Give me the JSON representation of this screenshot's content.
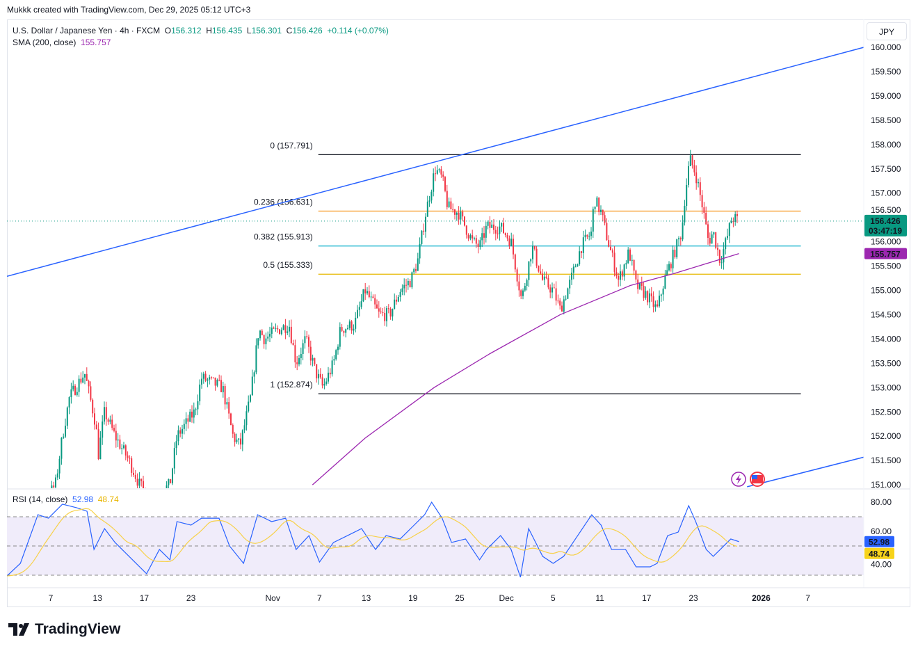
{
  "credit": "Mukkk created with TradingView.com, Dec 29, 2025 05:12 UTC+3",
  "legend": {
    "symbol": "U.S. Dollar / Japanese Yen · 4h · FXCM",
    "o_label": "O",
    "o": "156.312",
    "h_label": "H",
    "h": "156.435",
    "l_label": "L",
    "l": "156.301",
    "c_label": "C",
    "c": "156.426",
    "change": "+0.114 (+0.07%)",
    "sma_label": "SMA (200, close)",
    "sma_value": "155.757"
  },
  "currency_button": "JPY",
  "rsi_legend": {
    "label": "RSI (14, close)",
    "rsi": "52.98",
    "ma": "48.74"
  },
  "price_badges": {
    "last": "156.426",
    "countdown": "03:47:19",
    "sma": "155.757",
    "rsi": "52.98",
    "rsi_ma": "48.74"
  },
  "logo_text": "TradingView",
  "colors": {
    "up": "#089981",
    "down": "#f23645",
    "sma": "#9c27b0",
    "trend": "#2962ff",
    "rsi": "#2962ff",
    "rsi_ma": "#f7d14a"
  },
  "chart_data": {
    "type": "candlestick",
    "symbol": "USDJPY",
    "interval": "4h",
    "price_axis": {
      "min": 151.0,
      "max": 160.0,
      "ticks": [
        "151.000",
        "151.500",
        "152.000",
        "152.500",
        "153.000",
        "153.500",
        "154.000",
        "154.500",
        "155.000",
        "155.500",
        "156.000",
        "156.500",
        "157.000",
        "157.500",
        "158.000",
        "158.500",
        "159.000",
        "159.500",
        "160.000"
      ]
    },
    "time_axis": {
      "unit": "trading-day index from Oct 7",
      "ticks": [
        {
          "t": 0,
          "label": "7"
        },
        {
          "t": 4,
          "label": "13"
        },
        {
          "t": 8,
          "label": "17"
        },
        {
          "t": 12,
          "label": "23"
        },
        {
          "t": 19,
          "label": "Nov"
        },
        {
          "t": 23,
          "label": "7"
        },
        {
          "t": 27,
          "label": "13"
        },
        {
          "t": 31,
          "label": "19"
        },
        {
          "t": 35,
          "label": "25"
        },
        {
          "t": 39,
          "label": "Dec"
        },
        {
          "t": 43,
          "label": "5"
        },
        {
          "t": 47,
          "label": "11"
        },
        {
          "t": 51,
          "label": "17"
        },
        {
          "t": 55,
          "label": "23"
        },
        {
          "t": 60.8,
          "label": "2026"
        },
        {
          "t": 64.8,
          "label": "7"
        }
      ]
    },
    "price_path": [
      [
        -3.75,
        149.5
      ],
      [
        0.4,
        151.0
      ],
      [
        1.0,
        152.0
      ],
      [
        1.6,
        152.8
      ],
      [
        2.9,
        153.3
      ],
      [
        3.9,
        152.2
      ],
      [
        4.0,
        151.5
      ],
      [
        4.6,
        152.5
      ],
      [
        5.5,
        152.0
      ],
      [
        6.7,
        151.5
      ],
      [
        7.6,
        151.0
      ],
      [
        8.5,
        150.7
      ],
      [
        10.2,
        151.0
      ],
      [
        10.8,
        152.0
      ],
      [
        12.3,
        152.5
      ],
      [
        12.9,
        153.2
      ],
      [
        14.7,
        153.0
      ],
      [
        15.6,
        152.0
      ],
      [
        16.2,
        151.8
      ],
      [
        17.1,
        152.8
      ],
      [
        17.8,
        154.2
      ],
      [
        18.3,
        154.0
      ],
      [
        19.5,
        154.2
      ],
      [
        20.4,
        154.3
      ],
      [
        21.0,
        153.5
      ],
      [
        21.8,
        154.0
      ],
      [
        22.7,
        153.3
      ],
      [
        23.3,
        153.0
      ],
      [
        24.2,
        153.5
      ],
      [
        24.8,
        154.2
      ],
      [
        26.0,
        154.3
      ],
      [
        26.9,
        155.0
      ],
      [
        28.1,
        154.5
      ],
      [
        29.0,
        154.5
      ],
      [
        29.9,
        155.0
      ],
      [
        30.8,
        155.2
      ],
      [
        31.4,
        155.6
      ],
      [
        32.1,
        156.6
      ],
      [
        32.9,
        157.5
      ],
      [
        33.5,
        157.3
      ],
      [
        34.0,
        156.7
      ],
      [
        34.9,
        156.6
      ],
      [
        36.1,
        156.0
      ],
      [
        36.7,
        155.9
      ],
      [
        37.3,
        156.3
      ],
      [
        38.5,
        156.3
      ],
      [
        39.4,
        156.0
      ],
      [
        40.0,
        155.2
      ],
      [
        40.3,
        154.8
      ],
      [
        41.2,
        155.9
      ],
      [
        42.1,
        155.2
      ],
      [
        43.0,
        155.0
      ],
      [
        43.6,
        154.6
      ],
      [
        44.5,
        155.2
      ],
      [
        45.4,
        155.9
      ],
      [
        46.3,
        156.2
      ],
      [
        46.5,
        156.9
      ],
      [
        47.1,
        156.6
      ],
      [
        47.7,
        156.0
      ],
      [
        48.6,
        155.2
      ],
      [
        49.5,
        155.8
      ],
      [
        50.1,
        155.1
      ],
      [
        51.0,
        154.9
      ],
      [
        51.9,
        154.6
      ],
      [
        52.5,
        155.2
      ],
      [
        53.4,
        155.8
      ],
      [
        54.0,
        156.2
      ],
      [
        54.3,
        157.0
      ],
      [
        54.7,
        157.7
      ],
      [
        55.2,
        157.4
      ],
      [
        55.8,
        156.7
      ],
      [
        56.3,
        156.0
      ],
      [
        56.7,
        156.2
      ],
      [
        57.3,
        155.6
      ],
      [
        57.9,
        156.1
      ],
      [
        58.3,
        156.5
      ],
      [
        58.9,
        156.426
      ]
    ],
    "sma200": [
      [
        22.4,
        151.0
      ],
      [
        26.9,
        151.96
      ],
      [
        32.8,
        153.0
      ],
      [
        37.6,
        153.7
      ],
      [
        43.6,
        154.5
      ],
      [
        49.6,
        155.1
      ],
      [
        53.4,
        155.35
      ],
      [
        58.9,
        155.757
      ]
    ],
    "trendlines": [
      {
        "from": [
          -3.75,
          155.29
        ],
        "to": [
          69.6,
          160.0
        ]
      },
      {
        "from": [
          59.6,
          150.96
        ],
        "to": [
          69.6,
          151.57
        ]
      }
    ],
    "fibonacci": {
      "from_t": 22.9,
      "to_t": 64.2,
      "levels": [
        {
          "ratio": "0",
          "price": 157.791,
          "label": "0 (157.791)",
          "color": "#131722"
        },
        {
          "ratio": "0.236",
          "price": 156.631,
          "label": "0.236 (156.631)",
          "color": "#f7931a"
        },
        {
          "ratio": "0.382",
          "price": 155.913,
          "label": "0.382 (155.913)",
          "color": "#22b8cf"
        },
        {
          "ratio": "0.5",
          "price": 155.333,
          "label": "0.5 (155.333)",
          "color": "#e6b800"
        },
        {
          "ratio": "1",
          "price": 152.874,
          "label": "1 (152.874)",
          "color": "#131722"
        }
      ]
    },
    "rsi": {
      "axis_ticks": [
        "80.00",
        "60.00",
        "40.00"
      ],
      "bands": [
        70,
        50,
        30
      ],
      "values": [
        [
          -3.75,
          29.5
        ],
        [
          -2.6,
          38.1
        ],
        [
          -1.1,
          71.4
        ],
        [
          -0.2,
          69
        ],
        [
          1.0,
          78.6
        ],
        [
          2.2,
          76.2
        ],
        [
          3.1,
          73.8
        ],
        [
          3.7,
          47.6
        ],
        [
          4.6,
          61.9
        ],
        [
          5.5,
          52.4
        ],
        [
          6.7,
          42.9
        ],
        [
          8.2,
          31
        ],
        [
          9.3,
          47.6
        ],
        [
          10.2,
          40.5
        ],
        [
          10.8,
          66.7
        ],
        [
          12.0,
          64.3
        ],
        [
          12.9,
          69
        ],
        [
          14.4,
          69
        ],
        [
          15.3,
          50
        ],
        [
          16.5,
          38.1
        ],
        [
          17.7,
          71.4
        ],
        [
          18.9,
          66.7
        ],
        [
          20.1,
          69
        ],
        [
          21.0,
          47.6
        ],
        [
          22.1,
          57.1
        ],
        [
          23.0,
          39
        ],
        [
          24.2,
          52.4
        ],
        [
          25.4,
          57.1
        ],
        [
          26.6,
          61.9
        ],
        [
          27.8,
          47.6
        ],
        [
          28.7,
          57.1
        ],
        [
          29.9,
          54.8
        ],
        [
          30.8,
          61.9
        ],
        [
          32.0,
          71.4
        ],
        [
          32.6,
          80
        ],
        [
          33.5,
          69
        ],
        [
          34.3,
          52.4
        ],
        [
          35.5,
          54.8
        ],
        [
          36.7,
          40.5
        ],
        [
          37.3,
          47.6
        ],
        [
          38.5,
          57.1
        ],
        [
          39.4,
          47.6
        ],
        [
          40.2,
          28.6
        ],
        [
          40.9,
          61.9
        ],
        [
          42.1,
          42.9
        ],
        [
          43.0,
          38.1
        ],
        [
          43.9,
          42.9
        ],
        [
          45.1,
          57.1
        ],
        [
          46.3,
          71.4
        ],
        [
          47.1,
          64.3
        ],
        [
          48.0,
          47.6
        ],
        [
          49.2,
          47.6
        ],
        [
          50.1,
          35.7
        ],
        [
          51.3,
          35.7
        ],
        [
          51.9,
          38.1
        ],
        [
          52.8,
          57.1
        ],
        [
          53.7,
          59.5
        ],
        [
          54.6,
          77.6
        ],
        [
          55.2,
          66.7
        ],
        [
          56.1,
          47.6
        ],
        [
          56.7,
          42.9
        ],
        [
          57.3,
          47.6
        ],
        [
          58.2,
          54.8
        ],
        [
          58.9,
          52.98
        ]
      ]
    }
  }
}
